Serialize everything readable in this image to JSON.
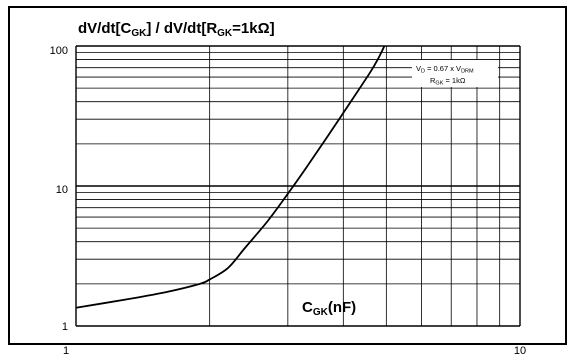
{
  "chart_data": {
    "type": "line",
    "title": {
      "lead": "dV/dt[C",
      "sub1": "GK",
      "mid": "] / dV/dt[R",
      "sub2": "GK",
      "tail": "=1kΩ]"
    },
    "xlabel": {
      "main": "C",
      "sub": "GK",
      "unit": "(nF)"
    },
    "x_scale": "log",
    "y_scale": "log",
    "xlim": [
      1,
      10
    ],
    "ylim": [
      1,
      100
    ],
    "x_ticks": [
      "1",
      "10"
    ],
    "y_ticks": [
      "1",
      "10",
      "100"
    ],
    "grid": true,
    "annotation": {
      "line1_main": "V",
      "line1_sub": "D",
      "line1_mid": " = 0.67 x V",
      "line1_sub2": "DRM",
      "line2_main": "R",
      "line2_sub": "GK",
      "line2_tail": " = 1kΩ"
    },
    "series": [
      {
        "x": [
          1.0,
          1.3,
          1.6,
          1.9,
          2.0,
          2.2,
          2.4,
          2.7,
          3.0,
          3.3,
          3.7,
          4.2,
          4.6,
          4.8,
          4.95
        ],
        "y": [
          1.35,
          1.55,
          1.75,
          2.0,
          2.15,
          2.6,
          3.6,
          5.6,
          8.8,
          13.5,
          23.0,
          42.0,
          65.0,
          82.0,
          100.0
        ]
      }
    ]
  }
}
